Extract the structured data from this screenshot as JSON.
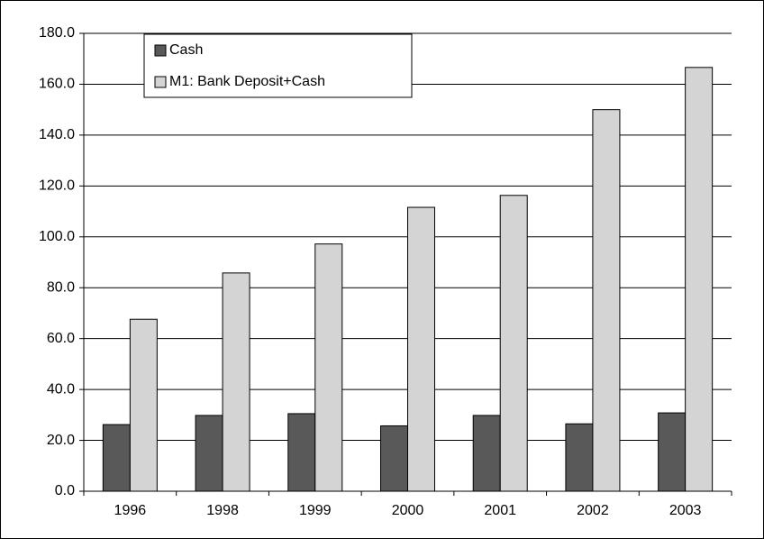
{
  "chart_data": {
    "type": "bar",
    "categories": [
      "1996",
      "1998",
      "1999",
      "2000",
      "2001",
      "2002",
      "2003"
    ],
    "series": [
      {
        "name": "Cash",
        "color": "#595959",
        "values": [
          26.2,
          29.8,
          30.5,
          25.7,
          29.8,
          26.5,
          30.8
        ]
      },
      {
        "name": "M1: Bank Deposit+Cash",
        "color": "#d4d4d4",
        "values": [
          67.6,
          85.8,
          97.2,
          111.6,
          116.3,
          150.0,
          166.6
        ]
      }
    ],
    "ylim": [
      0,
      180
    ],
    "yticks": [
      {
        "value": 0,
        "label": "0.0"
      },
      {
        "value": 20,
        "label": "20.0"
      },
      {
        "value": 40,
        "label": "40.0"
      },
      {
        "value": 60,
        "label": "60.0"
      },
      {
        "value": 80,
        "label": "80.0"
      },
      {
        "value": 100,
        "label": "100.0"
      },
      {
        "value": 120,
        "label": "120.0"
      },
      {
        "value": 140,
        "label": "140.0"
      },
      {
        "value": 160,
        "label": "160.0"
      },
      {
        "value": 180,
        "label": "180.0"
      }
    ],
    "grid": true,
    "legend": "upper-left"
  }
}
